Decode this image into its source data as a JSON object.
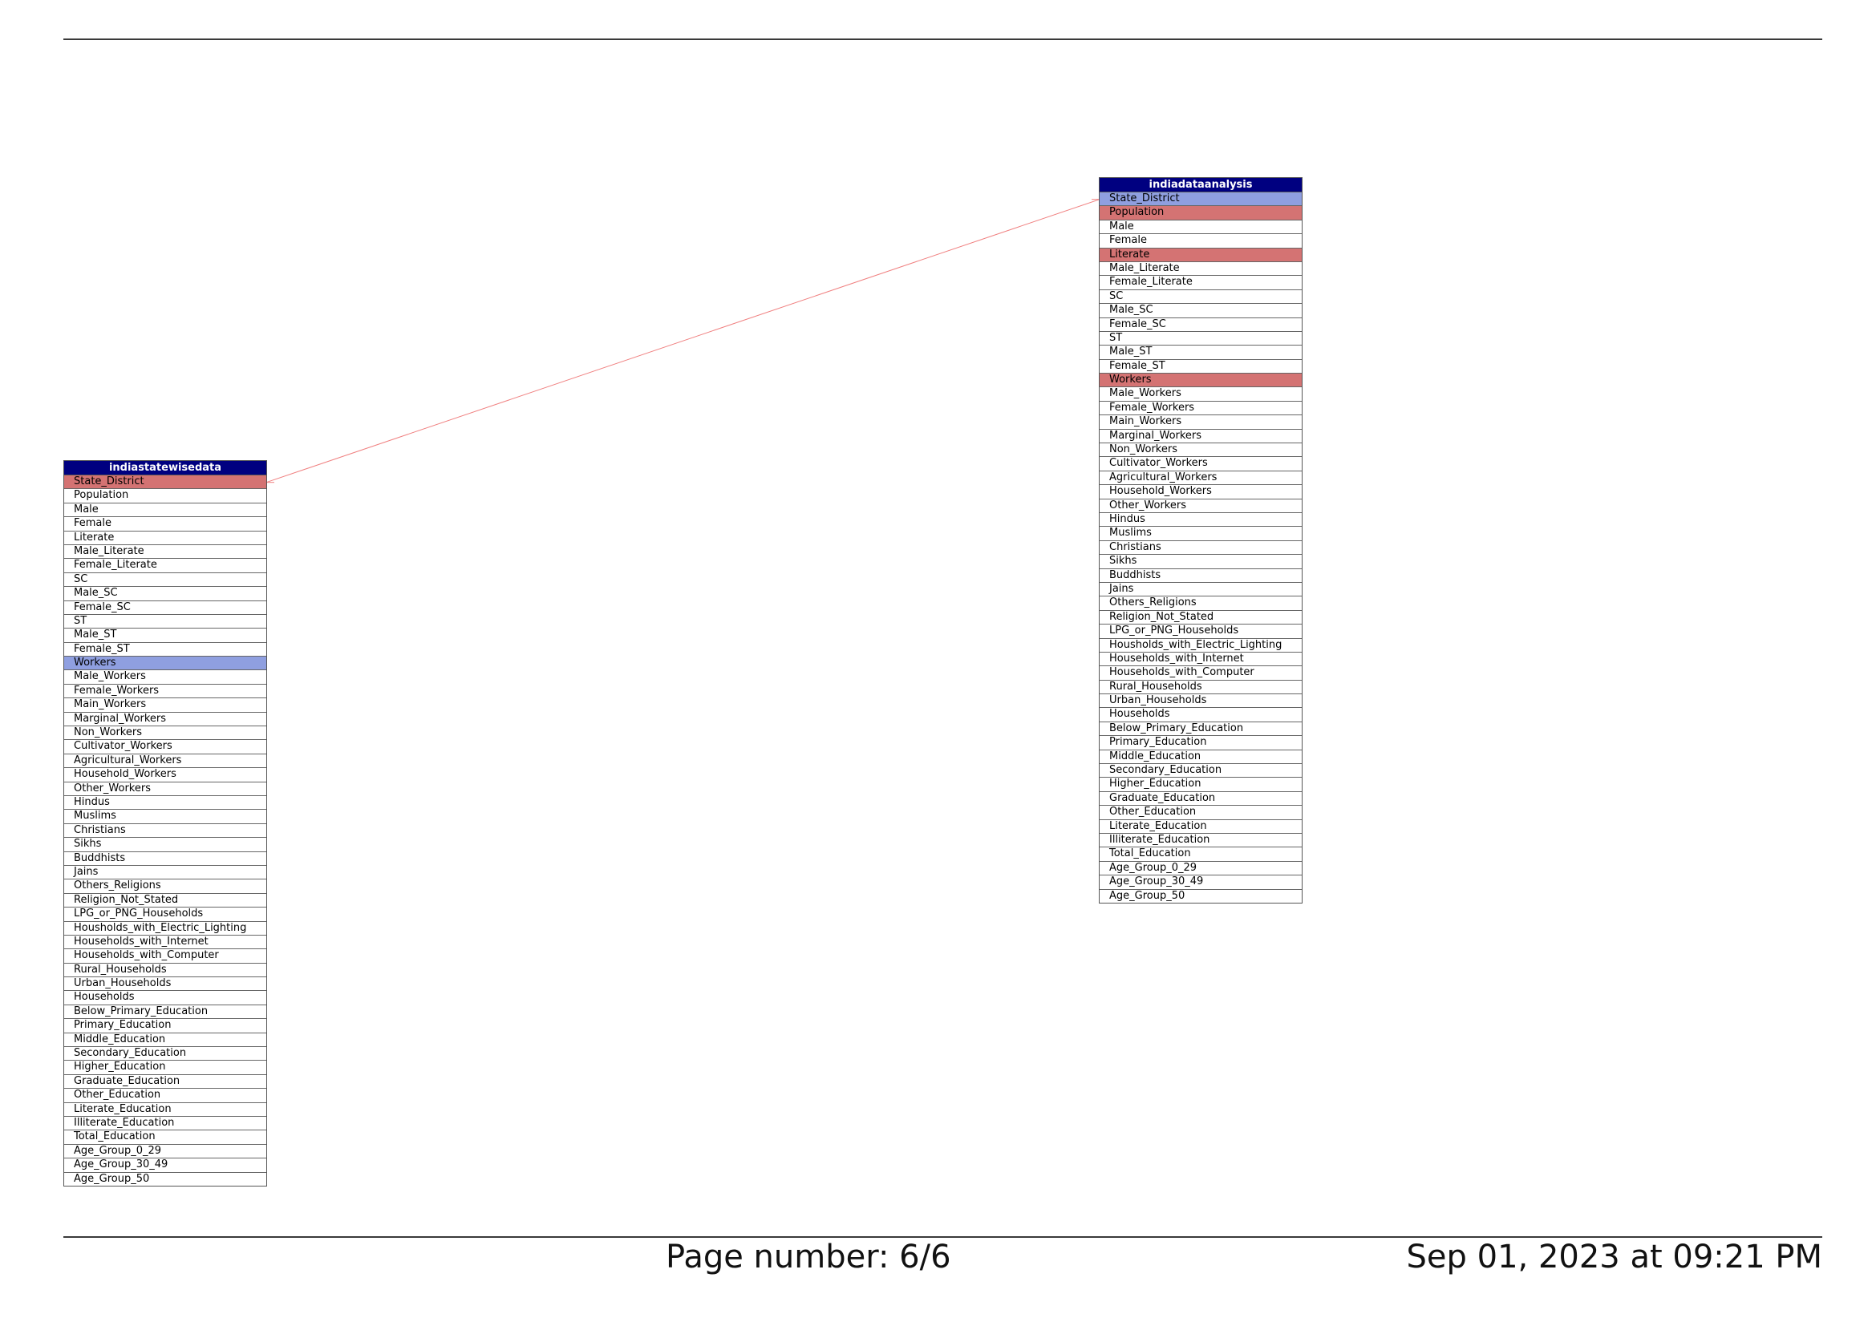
{
  "entities": {
    "a": {
      "name": "indiastatewisedata",
      "highlight": {
        "pk": [
          "State_District"
        ],
        "fk": [
          "Workers"
        ]
      },
      "fields": [
        "State_District",
        "Population",
        "Male",
        "Female",
        "Literate",
        "Male_Literate",
        "Female_Literate",
        "SC",
        "Male_SC",
        "Female_SC",
        "ST",
        "Male_ST",
        "Female_ST",
        "Workers",
        "Male_Workers",
        "Female_Workers",
        "Main_Workers",
        "Marginal_Workers",
        "Non_Workers",
        "Cultivator_Workers",
        "Agricultural_Workers",
        "Household_Workers",
        "Other_Workers",
        "Hindus",
        "Muslims",
        "Christians",
        "Sikhs",
        "Buddhists",
        "Jains",
        "Others_Religions",
        "Religion_Not_Stated",
        "LPG_or_PNG_Households",
        "Housholds_with_Electric_Lighting",
        "Households_with_Internet",
        "Households_with_Computer",
        "Rural_Households",
        "Urban_Households",
        "Households",
        "Below_Primary_Education",
        "Primary_Education",
        "Middle_Education",
        "Secondary_Education",
        "Higher_Education",
        "Graduate_Education",
        "Other_Education",
        "Literate_Education",
        "Illiterate_Education",
        "Total_Education",
        "Age_Group_0_29",
        "Age_Group_30_49",
        "Age_Group_50"
      ]
    },
    "b": {
      "name": "indiadataanalysis",
      "highlight": {
        "pk": [
          "Population",
          "Literate",
          "Workers"
        ],
        "fk": [
          "State_District"
        ]
      },
      "fields": [
        "State_District",
        "Population",
        "Male",
        "Female",
        "Literate",
        "Male_Literate",
        "Female_Literate",
        "SC",
        "Male_SC",
        "Female_SC",
        "ST",
        "Male_ST",
        "Female_ST",
        "Workers",
        "Male_Workers",
        "Female_Workers",
        "Main_Workers",
        "Marginal_Workers",
        "Non_Workers",
        "Cultivator_Workers",
        "Agricultural_Workers",
        "Household_Workers",
        "Other_Workers",
        "Hindus",
        "Muslims",
        "Christians",
        "Sikhs",
        "Buddhists",
        "Jains",
        "Others_Religions",
        "Religion_Not_Stated",
        "LPG_or_PNG_Households",
        "Housholds_with_Electric_Lighting",
        "Households_with_Internet",
        "Households_with_Computer",
        "Rural_Households",
        "Urban_Households",
        "Households",
        "Below_Primary_Education",
        "Primary_Education",
        "Middle_Education",
        "Secondary_Education",
        "Higher_Education",
        "Graduate_Education",
        "Other_Education",
        "Literate_Education",
        "Illiterate_Education",
        "Total_Education",
        "Age_Group_0_29",
        "Age_Group_30_49",
        "Age_Group_50"
      ]
    }
  },
  "relationships": [
    {
      "from": "b.State_District",
      "to": "a.State_District",
      "color": "#f08080"
    }
  ],
  "colors": {
    "header": "#000080",
    "pk_row": "#d47373",
    "fk_row": "#8f9fe0"
  },
  "footer": {
    "page_number": "Page number: 6/6",
    "timestamp": "Sep 01, 2023 at 09:21 PM"
  }
}
